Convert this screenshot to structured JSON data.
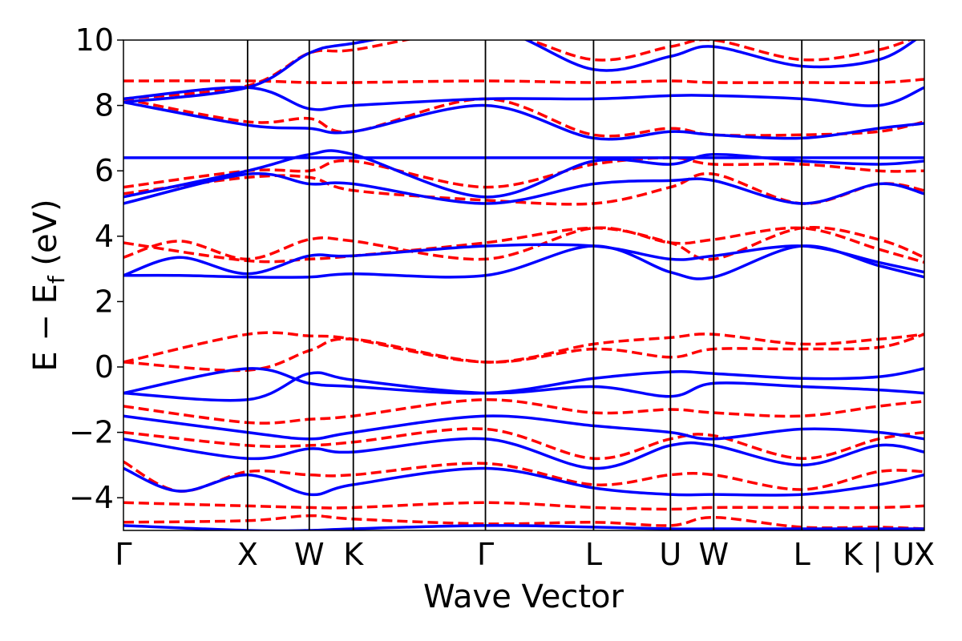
{
  "chart_data": {
    "type": "line",
    "title": "",
    "xlabel": "Wave Vector",
    "ylabel_main": "E − E",
    "ylabel_sub": "f",
    "ylabel_unit": " (eV)",
    "ylim": [
      -5,
      10
    ],
    "yticks": [
      -4,
      -2,
      0,
      2,
      4,
      6,
      8,
      10
    ],
    "ytick_labels": [
      "−4",
      "−2",
      "0",
      "2",
      "4",
      "6",
      "8",
      "10"
    ],
    "xlim": [
      0,
      1
    ],
    "high_symmetry_points": [
      {
        "label": "Γ",
        "x": 0.0
      },
      {
        "label": "X",
        "x": 0.155
      },
      {
        "label": "W",
        "x": 0.232
      },
      {
        "label": "K",
        "x": 0.287
      },
      {
        "label": "Γ",
        "x": 0.452
      },
      {
        "label": "L",
        "x": 0.587
      },
      {
        "label": "U",
        "x": 0.683
      },
      {
        "label": "W",
        "x": 0.737
      },
      {
        "label": "L",
        "x": 0.847
      },
      {
        "label": "K | U",
        "x": 0.943
      },
      {
        "label": "X",
        "x": 1.0
      }
    ],
    "series": [
      {
        "style": "dashed",
        "color": "#ff0000",
        "bands": [
          {
            "x": [
              0,
              0.155,
              0.232,
              0.287,
              0.452,
              0.587,
              0.683,
              0.737,
              0.847,
              0.943,
              1
            ],
            "y": [
              -4.75,
              -4.7,
              -4.55,
              -4.65,
              -4.8,
              -4.75,
              -4.85,
              -4.6,
              -4.9,
              -4.9,
              -4.95
            ]
          },
          {
            "x": [
              0,
              0.155,
              0.232,
              0.287,
              0.452,
              0.587,
              0.683,
              0.737,
              0.847,
              0.943,
              1
            ],
            "y": [
              -4.15,
              -4.25,
              -4.3,
              -4.3,
              -4.15,
              -4.3,
              -4.35,
              -4.3,
              -4.3,
              -4.3,
              -4.25
            ]
          },
          {
            "x": [
              0,
              0.07,
              0.155,
              0.232,
              0.287,
              0.452,
              0.587,
              0.683,
              0.737,
              0.847,
              0.943,
              1
            ],
            "y": [
              -2.9,
              -3.8,
              -3.2,
              -3.3,
              -3.3,
              -2.95,
              -3.6,
              -3.3,
              -3.3,
              -3.75,
              -3.2,
              -3.2
            ]
          },
          {
            "x": [
              0,
              0.155,
              0.232,
              0.287,
              0.452,
              0.587,
              0.683,
              0.737,
              0.847,
              0.943,
              1
            ],
            "y": [
              -2.0,
              -2.4,
              -2.4,
              -2.3,
              -1.9,
              -2.8,
              -2.2,
              -2.1,
              -2.8,
              -2.2,
              -2.0
            ]
          },
          {
            "x": [
              0,
              0.155,
              0.232,
              0.287,
              0.452,
              0.587,
              0.683,
              0.737,
              0.847,
              0.943,
              1
            ],
            "y": [
              -1.2,
              -1.7,
              -1.6,
              -1.5,
              -1.0,
              -1.4,
              -1.3,
              -1.4,
              -1.5,
              -1.2,
              -1.05
            ]
          },
          {
            "x": [
              0,
              0.155,
              0.232,
              0.287,
              0.452,
              0.587,
              0.683,
              0.737,
              0.847,
              0.943,
              1
            ],
            "y": [
              0.15,
              -0.1,
              0.5,
              0.85,
              0.15,
              0.55,
              0.3,
              0.55,
              0.55,
              0.6,
              1.0
            ]
          },
          {
            "x": [
              0,
              0.155,
              0.232,
              0.287,
              0.452,
              0.587,
              0.683,
              0.737,
              0.847,
              0.943,
              1
            ],
            "y": [
              0.15,
              1.0,
              0.95,
              0.85,
              0.15,
              0.7,
              0.9,
              1.0,
              0.7,
              0.85,
              1.0
            ]
          },
          {
            "x": [
              0,
              0.07,
              0.155,
              0.232,
              0.287,
              0.452,
              0.587,
              0.683,
              0.737,
              0.847,
              0.943,
              1
            ],
            "y": [
              3.35,
              3.85,
              3.3,
              3.9,
              3.85,
              3.3,
              4.25,
              3.8,
              3.9,
              4.25,
              3.6,
              3.2
            ]
          },
          {
            "x": [
              0,
              0.155,
              0.232,
              0.287,
              0.452,
              0.587,
              0.683,
              0.737,
              0.847,
              0.943,
              1
            ],
            "y": [
              3.8,
              3.25,
              3.3,
              3.4,
              3.8,
              4.25,
              3.8,
              3.3,
              4.25,
              3.9,
              3.35
            ]
          },
          {
            "x": [
              0,
              0.155,
              0.232,
              0.287,
              0.452,
              0.587,
              0.683,
              0.737,
              0.847,
              0.943,
              1
            ],
            "y": [
              5.3,
              5.8,
              5.8,
              5.4,
              5.1,
              5.0,
              5.5,
              5.9,
              5.0,
              5.6,
              5.4
            ]
          },
          {
            "x": [
              0,
              0.155,
              0.232,
              0.287,
              0.452,
              0.587,
              0.683,
              0.737,
              0.847,
              0.943,
              1
            ],
            "y": [
              5.5,
              6.0,
              6.0,
              6.3,
              5.5,
              6.2,
              6.4,
              6.2,
              6.2,
              6.0,
              6.0
            ]
          },
          {
            "x": [
              0,
              0.155,
              0.232,
              0.287,
              0.452,
              0.587,
              0.683,
              0.737,
              0.847,
              0.943,
              1
            ],
            "y": [
              8.2,
              7.5,
              7.6,
              7.2,
              8.2,
              7.1,
              7.3,
              7.1,
              7.1,
              7.2,
              7.5
            ]
          },
          {
            "x": [
              0,
              0.155,
              0.232,
              0.287,
              0.452,
              0.587,
              0.683,
              0.737,
              0.847,
              0.943,
              1
            ],
            "y": [
              8.75,
              8.75,
              8.7,
              8.7,
              8.75,
              8.7,
              8.75,
              8.7,
              8.7,
              8.7,
              8.8
            ]
          },
          {
            "x": [
              0,
              0.155,
              0.232,
              0.287,
              0.452,
              0.587,
              0.683,
              0.737,
              0.847,
              0.943,
              1
            ],
            "y": [
              8.2,
              8.6,
              9.6,
              9.7,
              10.3,
              9.4,
              9.8,
              10.0,
              9.4,
              9.7,
              10.2
            ]
          }
        ]
      },
      {
        "style": "solid",
        "color": "#0000ff",
        "bands": [
          {
            "x": [
              0,
              0.155,
              0.232,
              0.287,
              0.452,
              0.587,
              0.683,
              0.737,
              0.847,
              0.943,
              1
            ],
            "y": [
              -4.85,
              -5.0,
              -5.0,
              -4.95,
              -4.85,
              -4.9,
              -4.95,
              -4.95,
              -4.95,
              -4.95,
              -4.95
            ]
          },
          {
            "x": [
              0,
              0.07,
              0.155,
              0.232,
              0.287,
              0.452,
              0.587,
              0.683,
              0.737,
              0.847,
              0.943,
              1
            ],
            "y": [
              -3.1,
              -3.8,
              -3.3,
              -3.9,
              -3.6,
              -3.1,
              -3.7,
              -3.9,
              -3.9,
              -3.9,
              -3.6,
              -3.3
            ]
          },
          {
            "x": [
              0,
              0.155,
              0.232,
              0.287,
              0.452,
              0.587,
              0.683,
              0.737,
              0.847,
              0.943,
              1
            ],
            "y": [
              -2.2,
              -2.8,
              -2.5,
              -2.6,
              -2.2,
              -3.1,
              -2.4,
              -2.4,
              -3.0,
              -2.4,
              -2.6
            ]
          },
          {
            "x": [
              0,
              0.155,
              0.232,
              0.287,
              0.452,
              0.587,
              0.683,
              0.737,
              0.847,
              0.943,
              1
            ],
            "y": [
              -1.5,
              -2.0,
              -2.2,
              -2.0,
              -1.5,
              -1.8,
              -2.0,
              -2.2,
              -1.9,
              -2.0,
              -2.2
            ]
          },
          {
            "x": [
              0,
              0.155,
              0.232,
              0.287,
              0.452,
              0.587,
              0.683,
              0.737,
              0.847,
              0.943,
              1
            ],
            "y": [
              -0.8,
              -0.05,
              -0.5,
              -0.6,
              -0.8,
              -0.35,
              -0.15,
              -0.2,
              -0.35,
              -0.3,
              -0.05
            ]
          },
          {
            "x": [
              0,
              0.155,
              0.232,
              0.287,
              0.452,
              0.587,
              0.683,
              0.737,
              0.847,
              0.943,
              1
            ],
            "y": [
              -0.8,
              -1.0,
              -0.2,
              -0.4,
              -0.8,
              -0.6,
              -0.9,
              -0.5,
              -0.6,
              -0.7,
              -0.8
            ]
          },
          {
            "x": [
              0,
              0.07,
              0.155,
              0.232,
              0.287,
              0.452,
              0.587,
              0.683,
              0.737,
              0.847,
              0.943,
              1
            ],
            "y": [
              2.8,
              2.8,
              2.75,
              2.75,
              2.85,
              2.8,
              3.7,
              2.9,
              2.75,
              3.7,
              3.1,
              2.75
            ]
          },
          {
            "x": [
              0,
              0.07,
              0.155,
              0.232,
              0.287,
              0.452,
              0.587,
              0.683,
              0.737,
              0.847,
              0.943,
              1
            ],
            "y": [
              2.8,
              3.35,
              2.85,
              3.4,
              3.4,
              3.7,
              3.7,
              3.3,
              3.4,
              3.7,
              3.2,
              2.9
            ]
          },
          {
            "x": [
              0,
              0.155,
              0.232,
              0.287,
              0.452,
              0.587,
              0.683,
              0.737,
              0.847,
              0.943,
              1
            ],
            "y": [
              5.0,
              5.9,
              5.6,
              5.6,
              5.0,
              5.6,
              5.7,
              5.7,
              5.0,
              5.6,
              5.3
            ]
          },
          {
            "x": [
              0,
              0.155,
              0.232,
              0.287,
              0.452,
              0.587,
              0.683,
              0.737,
              0.847,
              0.943,
              1
            ],
            "y": [
              5.2,
              6.0,
              6.5,
              6.5,
              5.2,
              6.3,
              6.2,
              6.5,
              6.3,
              6.2,
              6.3
            ]
          },
          {
            "x": [
              0,
              0.155,
              0.232,
              0.287,
              0.452,
              0.587,
              0.683,
              0.737,
              0.847,
              0.943,
              1
            ],
            "y": [
              6.4,
              6.4,
              6.4,
              6.4,
              6.4,
              6.4,
              6.4,
              6.4,
              6.4,
              6.4,
              6.4
            ]
          },
          {
            "x": [
              0,
              0.155,
              0.232,
              0.287,
              0.452,
              0.587,
              0.683,
              0.737,
              0.847,
              0.943,
              1
            ],
            "y": [
              8.1,
              7.4,
              7.3,
              7.2,
              8.0,
              7.0,
              7.2,
              7.1,
              7.0,
              7.3,
              7.45
            ]
          },
          {
            "x": [
              0,
              0.155,
              0.232,
              0.287,
              0.452,
              0.587,
              0.683,
              0.737,
              0.847,
              0.943,
              1
            ],
            "y": [
              8.2,
              8.55,
              7.9,
              8.0,
              8.2,
              8.2,
              8.3,
              8.3,
              8.2,
              8.0,
              8.55
            ]
          },
          {
            "x": [
              0,
              0.155,
              0.232,
              0.287,
              0.452,
              0.587,
              0.683,
              0.737,
              0.847,
              0.943,
              1
            ],
            "y": [
              8.1,
              8.55,
              9.6,
              9.9,
              10.4,
              9.1,
              9.5,
              9.8,
              9.2,
              9.4,
              10.2
            ]
          }
        ]
      }
    ]
  }
}
